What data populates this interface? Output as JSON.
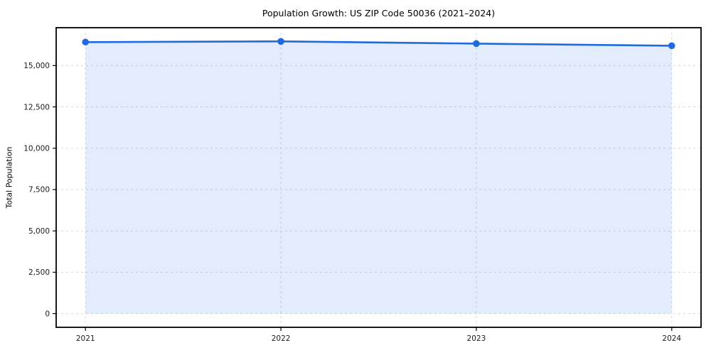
{
  "chart_data": {
    "type": "line",
    "title": "Population Growth: US ZIP Code 50036 (2021–2024)",
    "xlabel": "",
    "ylabel": "Total Population",
    "categories": [
      "2021",
      "2022",
      "2023",
      "2024"
    ],
    "series": [
      {
        "name": "Total Population",
        "values": [
          16420,
          16460,
          16330,
          16200
        ]
      }
    ],
    "yticks": [
      0,
      2500,
      5000,
      7500,
      10000,
      12500,
      15000
    ],
    "ylim": [
      -830,
      17290
    ],
    "grid": true,
    "grid_style": "dashed",
    "legend": "none",
    "area_fill": true,
    "colors": {
      "line": "#1f6ae0",
      "marker": "#1f6ae0",
      "fill_opacity": "0.13",
      "grid": "#d8d8d8",
      "spine": "#000000",
      "tick_text": "#1a1a1a",
      "background": "#ffffff"
    }
  }
}
